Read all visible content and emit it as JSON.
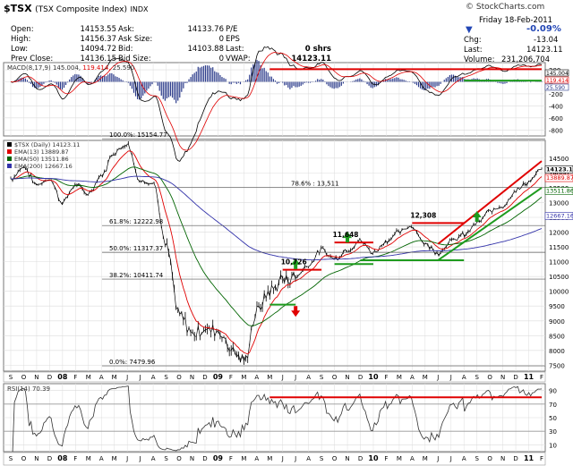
{
  "header": {
    "symbol": "$TSX",
    "name": "(TSX Composite Index)",
    "exchange": "INDX",
    "credit": "© StockCharts.com",
    "date": "Friday  18-Feb-2011",
    "pct_change": "-0.09%",
    "chg_label": "Chg:",
    "chg_value": "-13.04",
    "last_label": "Last:",
    "last_value": "14123.11",
    "volume_label": "Volume:",
    "volume_value": "231,206,704"
  },
  "quote": {
    "col1": [
      [
        "Open:",
        "14153.55"
      ],
      [
        "High:",
        "14156.37"
      ],
      [
        "Low:",
        "14094.72"
      ],
      [
        "Prev Close:",
        "14136.15"
      ]
    ],
    "col2": [
      [
        "Ask:",
        "14133.76"
      ],
      [
        "Ask Size:",
        "0"
      ],
      [
        "Bid:",
        "14103.88"
      ],
      [
        "Bid Size:",
        "0"
      ]
    ],
    "col3": [
      [
        "P/E",
        ""
      ],
      [
        "EPS",
        ""
      ],
      [
        "Last:",
        "0 shrs"
      ],
      [
        "VWAP:",
        "14123.11"
      ]
    ]
  },
  "chart_data": [
    {
      "type": "line",
      "title": "MACD(8,17,9) 145.004, 119.414, 25.590",
      "macd_label": "MACD(8,17,9)",
      "macd_value": "145.004",
      "signal_value": "119.414",
      "hist_value": "25.590",
      "y_ticks": [
        200,
        0,
        -200,
        -400,
        -600,
        -800
      ],
      "ylim": [
        -900,
        320
      ],
      "value_tags": [
        "145.004",
        "119.414",
        "25.590"
      ],
      "trendlines": [
        {
          "color": "#e00000",
          "from": [
            "2009-05",
            210
          ],
          "to": [
            "2011-02",
            210
          ]
        },
        {
          "color": "#1e9b1e",
          "from": [
            "2010-08",
            20
          ],
          "to": [
            "2011-02",
            20
          ]
        }
      ]
    },
    {
      "type": "line",
      "title": "$TSX (Daily) 14123.11",
      "legend": [
        {
          "name": "$TSX (Daily)",
          "value": "14123.11",
          "color": "#000000"
        },
        {
          "name": "EMA(13)",
          "value": "13889.87",
          "color": "#e00000"
        },
        {
          "name": "EMA(50)",
          "value": "13511.86",
          "color": "#006400"
        },
        {
          "name": "EMA(200)",
          "value": "12667.16",
          "color": "#3333aa"
        }
      ],
      "y_ticks": [
        7500,
        8000,
        8500,
        9000,
        9500,
        10000,
        10500,
        11000,
        11500,
        12000,
        12500,
        13000,
        13500,
        14000,
        14500
      ],
      "ylim": [
        7300,
        15100
      ],
      "right_tags": [
        "14123.11",
        "13889.87",
        "13511.86",
        "12667.16"
      ],
      "fib_levels": [
        {
          "label": "100.0%: 15154.77",
          "value": 15154.77
        },
        {
          "label": "78.6% : 13,511",
          "value": 13511
        },
        {
          "label": "61.8%: 12222.98",
          "value": 12222.98
        },
        {
          "label": "50.0%: 11317.37",
          "value": 11317.37
        },
        {
          "label": "38.2%: 10411.74",
          "value": 10411.74
        },
        {
          "label": "0.0%: 7479.96",
          "value": 7479.96
        }
      ],
      "annotations": [
        {
          "text": "10,726",
          "date": "2009-06",
          "value": 10726
        },
        {
          "text": "11,648",
          "date": "2009-10",
          "value": 11648
        },
        {
          "text": "12,308",
          "date": "2010-04",
          "value": 12308
        }
      ],
      "close_series": [
        [
          "2007-09",
          13800
        ],
        [
          "2007-10",
          14200
        ],
        [
          "2007-11",
          13600
        ],
        [
          "2007-12",
          13800
        ],
        [
          "2008-01",
          13000
        ],
        [
          "2008-02",
          13600
        ],
        [
          "2008-03",
          13300
        ],
        [
          "2008-04",
          13900
        ],
        [
          "2008-05",
          14700
        ],
        [
          "2008-06",
          15000
        ],
        [
          "2008-07",
          13700
        ],
        [
          "2008-08",
          13700
        ],
        [
          "2008-09",
          11500
        ],
        [
          "2008-10",
          9200
        ],
        [
          "2008-11",
          8600
        ],
        [
          "2008-12",
          8700
        ],
        [
          "2009-01",
          8700
        ],
        [
          "2009-02",
          8100
        ],
        [
          "2009-03",
          7600
        ],
        [
          "2009-04",
          9300
        ],
        [
          "2009-05",
          10000
        ],
        [
          "2009-06",
          10400
        ],
        [
          "2009-07",
          10500
        ],
        [
          "2009-08",
          10900
        ],
        [
          "2009-09",
          11400
        ],
        [
          "2009-10",
          11100
        ],
        [
          "2009-11",
          11400
        ],
        [
          "2009-12",
          11700
        ],
        [
          "2010-01",
          11300
        ],
        [
          "2010-02",
          11700
        ],
        [
          "2010-03",
          12000
        ],
        [
          "2010-04",
          12200
        ],
        [
          "2010-05",
          11600
        ],
        [
          "2010-06",
          11300
        ],
        [
          "2010-07",
          11700
        ],
        [
          "2010-08",
          11900
        ],
        [
          "2010-09",
          12300
        ],
        [
          "2010-10",
          12700
        ],
        [
          "2010-11",
          12900
        ],
        [
          "2010-12",
          13400
        ],
        [
          "2011-01",
          13700
        ],
        [
          "2011-02",
          14123
        ]
      ]
    },
    {
      "type": "line",
      "title": "RSI(14) 70.39",
      "rsi_label": "RSI(14)",
      "rsi_value": "70.39",
      "y_ticks": [
        90,
        70,
        50,
        30,
        10
      ],
      "ylim": [
        0,
        100
      ],
      "trendline": {
        "color": "#e00000",
        "from": [
          "2009-05",
          80
        ],
        "to": [
          "2011-02",
          80
        ]
      }
    }
  ],
  "x_axis": {
    "labels": [
      "S",
      "O",
      "N",
      "D",
      "08",
      "F",
      "M",
      "A",
      "M",
      "J",
      "J",
      "A",
      "S",
      "O",
      "N",
      "D",
      "09",
      "F",
      "M",
      "A",
      "M",
      "J",
      "J",
      "A",
      "S",
      "O",
      "N",
      "D",
      "10",
      "F",
      "M",
      "A",
      "M",
      "J",
      "J",
      "A",
      "S",
      "O",
      "N",
      "D",
      "11",
      "F"
    ],
    "bold": [
      "08",
      "09",
      "10",
      "11"
    ]
  },
  "colors": {
    "price": "#000000",
    "ema13": "#e00000",
    "ema50": "#006400",
    "ema200": "#3333aa",
    "red_line": "#e00000",
    "green_line": "#1e9b1e",
    "hist": "#2a3a8a"
  }
}
